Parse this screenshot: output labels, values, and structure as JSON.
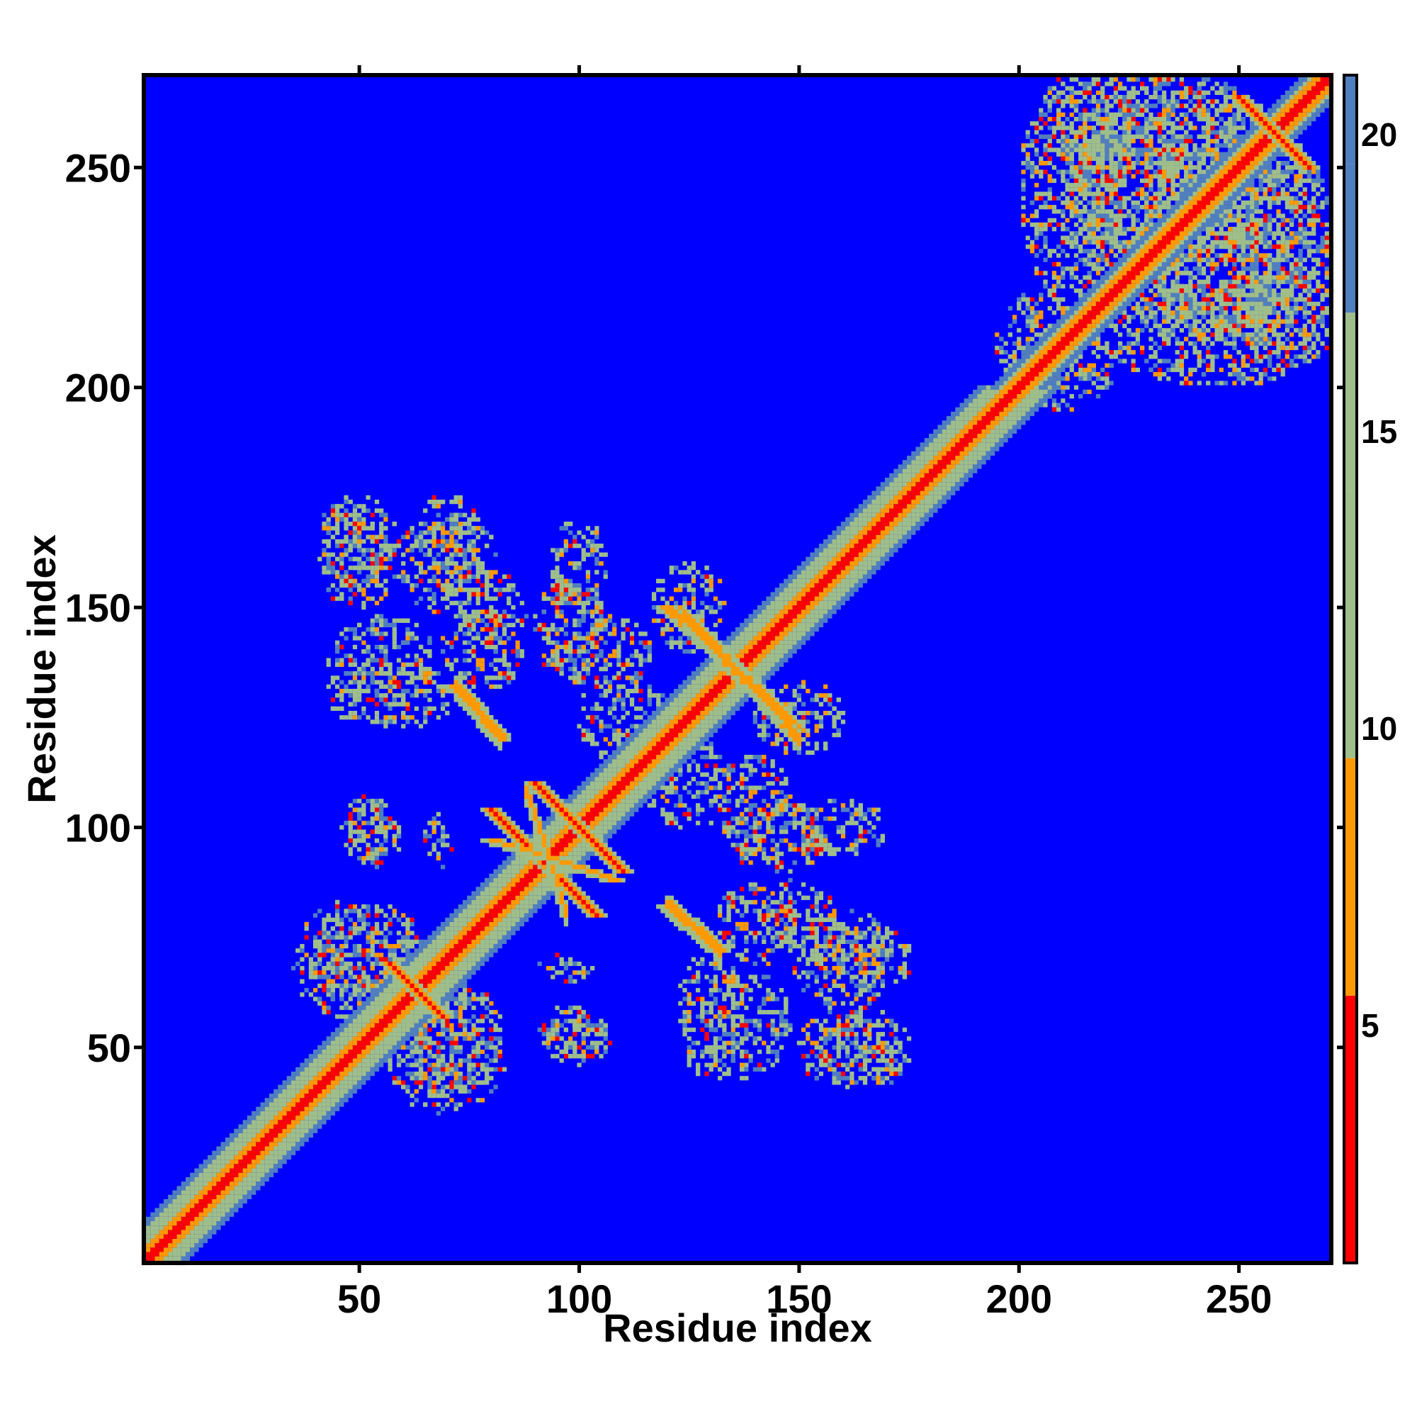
{
  "chart_data": {
    "type": "heatmap",
    "title": "",
    "xlabel": "Residue index",
    "ylabel": "Residue index",
    "xlim": [
      1,
      271
    ],
    "ylim": [
      1,
      271
    ],
    "x_ticks": [
      50,
      100,
      150,
      200,
      250
    ],
    "y_ticks": [
      50,
      100,
      150,
      200,
      250
    ],
    "colorbar": {
      "ticks": [
        5,
        10,
        15,
        20
      ],
      "range": [
        1,
        21
      ],
      "colors": {
        "low": "#ff0000",
        "mid_low": "#ff9900",
        "mid": "#9fbf8a",
        "mid_high": "#4f7fbf",
        "high": "#0000ff"
      }
    },
    "background_color": "#0000ff",
    "diagonal_band": {
      "description_values": "distance along diagonal",
      "segments": [
        {
          "from": 1,
          "to": 200,
          "core_width": 3,
          "halo_width": 9
        },
        {
          "from": 200,
          "to": 271,
          "core_width": 3,
          "halo_width": 6
        }
      ]
    },
    "anti_diagonal_contacts": [
      {
        "center": [
          92,
          92
        ],
        "half_length": 12
      },
      {
        "center": [
          100,
          100
        ],
        "half_length": 10
      },
      {
        "center": [
          136,
          136
        ],
        "half_length": 14
      },
      {
        "center": [
          63,
          63
        ],
        "half_length": 6
      },
      {
        "center": [
          258,
          258
        ],
        "half_length": 8
      }
    ],
    "parallel_contacts": [
      {
        "x": [
          72,
          82
        ],
        "y": [
          132,
          120
        ]
      },
      {
        "x": [
          120,
          132
        ],
        "y": [
          82,
          72
        ]
      },
      {
        "x": [
          120,
          148
        ],
        "y": [
          150,
          124
        ]
      },
      {
        "x": [
          80,
          108
        ],
        "y": [
          97,
          88
        ]
      }
    ],
    "contact_clusters": [
      {
        "cx": 50,
        "cy": 165,
        "w": 18,
        "h": 20
      },
      {
        "cx": 70,
        "cy": 165,
        "w": 14,
        "h": 22
      },
      {
        "cx": 98,
        "cy": 145,
        "w": 16,
        "h": 22
      },
      {
        "cx": 125,
        "cy": 150,
        "w": 16,
        "h": 20
      },
      {
        "cx": 55,
        "cy": 138,
        "w": 24,
        "h": 20
      },
      {
        "cx": 78,
        "cy": 140,
        "w": 18,
        "h": 18
      },
      {
        "cx": 53,
        "cy": 98,
        "w": 12,
        "h": 14
      },
      {
        "cx": 68,
        "cy": 97,
        "w": 6,
        "h": 12
      },
      {
        "cx": 160,
        "cy": 100,
        "w": 20,
        "h": 12
      },
      {
        "cx": 140,
        "cy": 105,
        "w": 16,
        "h": 24
      },
      {
        "cx": 125,
        "cy": 110,
        "w": 20,
        "h": 20
      },
      {
        "cx": 50,
        "cy": 70,
        "w": 30,
        "h": 26
      },
      {
        "cx": 70,
        "cy": 52,
        "w": 22,
        "h": 26
      },
      {
        "cx": 100,
        "cy": 52,
        "w": 14,
        "h": 12
      },
      {
        "cx": 130,
        "cy": 58,
        "w": 14,
        "h": 30
      },
      {
        "cx": 160,
        "cy": 50,
        "w": 20,
        "h": 16
      },
      {
        "cx": 160,
        "cy": 70,
        "w": 22,
        "h": 22
      },
      {
        "cx": 150,
        "cy": 80,
        "w": 16,
        "h": 16
      },
      {
        "cx": 230,
        "cy": 260,
        "w": 50,
        "h": 22
      },
      {
        "cx": 250,
        "cy": 235,
        "w": 40,
        "h": 50
      },
      {
        "cx": 245,
        "cy": 212,
        "w": 50,
        "h": 22
      },
      {
        "cx": 225,
        "cy": 245,
        "w": 30,
        "h": 40
      },
      {
        "cx": 210,
        "cy": 205,
        "w": 22,
        "h": 20
      }
    ]
  }
}
